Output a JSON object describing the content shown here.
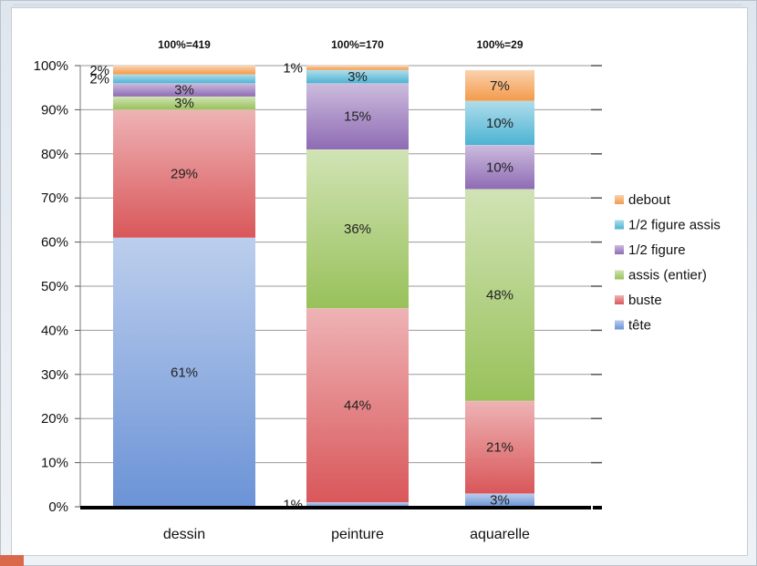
{
  "chart_data": {
    "type": "bar",
    "stacked": true,
    "percent": true,
    "categories": [
      "dessin",
      "peinture",
      "aquarelle"
    ],
    "totals": [
      "100%=419",
      "100%=170",
      "100%=29"
    ],
    "series": [
      {
        "name": "tête",
        "values": [
          61,
          1,
          3
        ],
        "labels": [
          "61%",
          "1%",
          "3%"
        ],
        "color": "#6b93d6"
      },
      {
        "name": "buste",
        "values": [
          29,
          44,
          21
        ],
        "labels": [
          "29%",
          "44%",
          "21%"
        ],
        "color": "#d9575a"
      },
      {
        "name": "assis (entier)",
        "values": [
          3,
          36,
          48
        ],
        "labels": [
          "3%",
          "36%",
          "48%"
        ],
        "color": "#98c15a"
      },
      {
        "name": "1/2 figure",
        "values": [
          3,
          15,
          10
        ],
        "labels": [
          "3%",
          "15%",
          "10%"
        ],
        "color": "#8e6bb4"
      },
      {
        "name": "1/2 figure assis",
        "values": [
          2,
          3,
          10
        ],
        "labels": [
          "2%",
          "3%",
          "10%"
        ],
        "color": "#4db3d3"
      },
      {
        "name": "debout",
        "values": [
          2,
          1,
          7
        ],
        "labels": [
          "2%",
          "1%",
          "7%"
        ],
        "color": "#f39a4a"
      }
    ],
    "ylim": [
      0,
      100
    ],
    "yticks": [
      "0%",
      "10%",
      "20%",
      "30%",
      "40%",
      "50%",
      "60%",
      "70%",
      "80%",
      "90%",
      "100%"
    ],
    "grid": true,
    "legend_position": "right"
  }
}
